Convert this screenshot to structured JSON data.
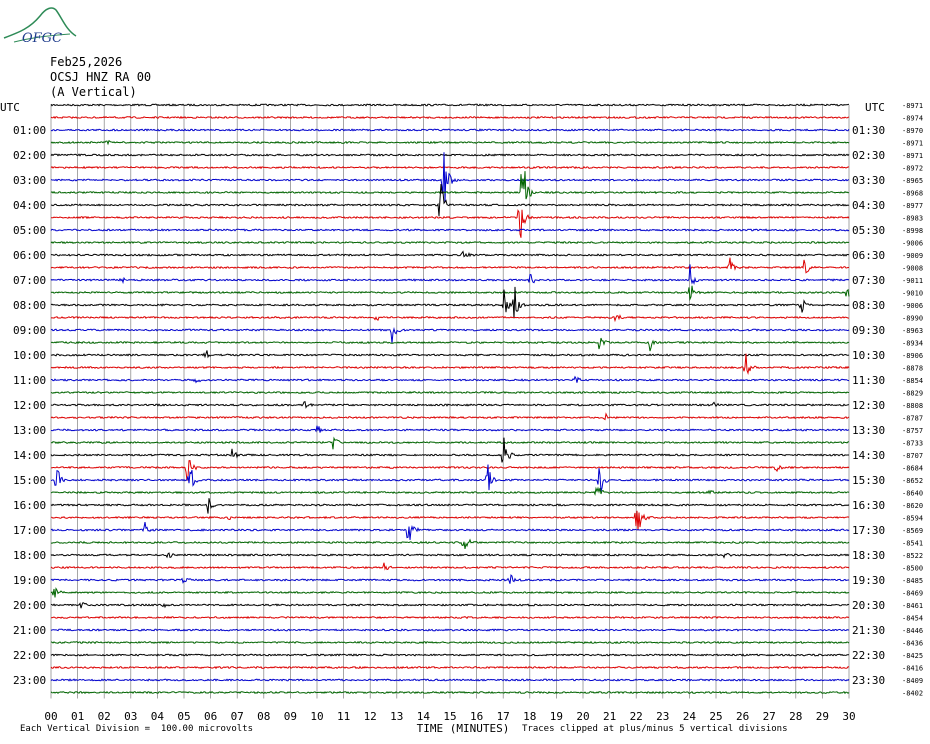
{
  "logo_text": "OFGC",
  "header": {
    "date": "Feb25,2026",
    "station": "OCSJ HNZ RA 00",
    "component": "(A Vertical)"
  },
  "footer": {
    "left_note": "Each Vertical Division =  100.00 microvolts",
    "xaxis_label": "TIME (MINUTES)",
    "right_note": "Traces clipped at plus/minus 5 vertical divisions"
  },
  "colors": {
    "cycle": [
      "#000000",
      "#dd0000",
      "#0000cc",
      "#006400"
    ],
    "grid": "#808080"
  },
  "chart_data": {
    "type": "line",
    "title": "",
    "xlabel": "TIME (MINUTES)",
    "xlim": [
      0,
      30
    ],
    "x_ticks": [
      "00",
      "01",
      "02",
      "03",
      "04",
      "05",
      "06",
      "07",
      "08",
      "09",
      "10",
      "11",
      "12",
      "13",
      "14",
      "15",
      "16",
      "17",
      "18",
      "19",
      "20",
      "21",
      "22",
      "23",
      "24",
      "25",
      "26",
      "27",
      "28",
      "29",
      "30"
    ],
    "left_axis_title": "UTC",
    "right_axis_title": "UTC",
    "left_hour_labels": [
      "01:00",
      "02:00",
      "03:00",
      "04:00",
      "05:00",
      "06:00",
      "07:00",
      "08:00",
      "09:00",
      "10:00",
      "11:00",
      "12:00",
      "13:00",
      "14:00",
      "15:00",
      "16:00",
      "17:00",
      "18:00",
      "19:00",
      "20:00",
      "21:00",
      "22:00",
      "23:00"
    ],
    "right_hour_labels": [
      "01:30",
      "02:30",
      "03:30",
      "04:30",
      "05:30",
      "06:30",
      "07:30",
      "08:30",
      "09:30",
      "10:30",
      "11:30",
      "12:30",
      "13:30",
      "14:30",
      "15:30",
      "16:30",
      "17:30",
      "18:30",
      "19:30",
      "20:30",
      "21:30",
      "22:30",
      "23:30"
    ],
    "trace_offsets": [
      "-8971",
      "-8974",
      "-8970",
      "-8971",
      "-8971",
      "-8972",
      "-8965",
      "-8968",
      "-8977",
      "-8983",
      "-8998",
      "-9006",
      "-9009",
      "-9008",
      "-9011",
      "-9010",
      "-9006",
      "-8990",
      "-8963",
      "-8934",
      "-8906",
      "-8878",
      "-8854",
      "-8829",
      "-8808",
      "-8787",
      "-8757",
      "-8733",
      "-8707",
      "-8684",
      "-8652",
      "-8640",
      "-8620",
      "-8594",
      "-8569",
      "-8541",
      "-8522",
      "-8500",
      "-8485",
      "-8469",
      "-8461",
      "-8454",
      "-8446",
      "-8436",
      "-8425",
      "-8416",
      "-8409",
      "-8402"
    ],
    "traces": 48,
    "events": [
      {
        "trace": 3,
        "minute": 2.1,
        "amp": 6
      },
      {
        "trace": 6,
        "minute": 14.7,
        "amp": 60
      },
      {
        "trace": 7,
        "minute": 17.7,
        "amp": 65
      },
      {
        "trace": 8,
        "minute": 14.6,
        "amp": 40
      },
      {
        "trace": 9,
        "minute": 17.6,
        "amp": 45
      },
      {
        "trace": 12,
        "minute": 15.5,
        "amp": 10
      },
      {
        "trace": 13,
        "minute": 25.5,
        "amp": 15
      },
      {
        "trace": 13,
        "minute": 28.3,
        "amp": 15
      },
      {
        "trace": 14,
        "minute": 2.6,
        "amp": 6
      },
      {
        "trace": 14,
        "minute": 18.0,
        "amp": 15
      },
      {
        "trace": 14,
        "minute": 24.0,
        "amp": 18
      },
      {
        "trace": 15,
        "minute": 24.0,
        "amp": 18
      },
      {
        "trace": 15,
        "minute": 29.9,
        "amp": 18
      },
      {
        "trace": 16,
        "minute": 17.0,
        "amp": 22
      },
      {
        "trace": 16,
        "minute": 17.4,
        "amp": 25
      },
      {
        "trace": 16,
        "minute": 28.2,
        "amp": 10
      },
      {
        "trace": 17,
        "minute": 12.2,
        "amp": 6
      },
      {
        "trace": 17,
        "minute": 21.2,
        "amp": 8
      },
      {
        "trace": 18,
        "minute": 12.8,
        "amp": 16
      },
      {
        "trace": 19,
        "minute": 20.6,
        "amp": 10
      },
      {
        "trace": 19,
        "minute": 22.5,
        "amp": 10
      },
      {
        "trace": 20,
        "minute": 5.8,
        "amp": 8
      },
      {
        "trace": 21,
        "minute": 26.1,
        "amp": 22
      },
      {
        "trace": 22,
        "minute": 5.4,
        "amp": 8
      },
      {
        "trace": 22,
        "minute": 19.6,
        "amp": 10
      },
      {
        "trace": 24,
        "minute": 9.5,
        "amp": 5
      },
      {
        "trace": 24,
        "minute": 24.8,
        "amp": 6
      },
      {
        "trace": 25,
        "minute": 20.8,
        "amp": 6
      },
      {
        "trace": 26,
        "minute": 10.0,
        "amp": 6
      },
      {
        "trace": 27,
        "minute": 10.6,
        "amp": 10
      },
      {
        "trace": 28,
        "minute": 17.0,
        "amp": 30
      },
      {
        "trace": 28,
        "minute": 6.8,
        "amp": 10
      },
      {
        "trace": 29,
        "minute": 5.1,
        "amp": 20
      },
      {
        "trace": 29,
        "minute": 27.2,
        "amp": 12
      },
      {
        "trace": 30,
        "minute": 0.2,
        "amp": 20
      },
      {
        "trace": 30,
        "minute": 5.2,
        "amp": 22
      },
      {
        "trace": 30,
        "minute": 16.4,
        "amp": 20
      },
      {
        "trace": 30,
        "minute": 20.6,
        "amp": 25
      },
      {
        "trace": 31,
        "minute": 20.5,
        "amp": 15
      },
      {
        "trace": 31,
        "minute": 24.7,
        "amp": 8
      },
      {
        "trace": 32,
        "minute": 5.9,
        "amp": 15
      },
      {
        "trace": 33,
        "minute": 6.6,
        "amp": 6
      },
      {
        "trace": 33,
        "minute": 22.0,
        "amp": 35
      },
      {
        "trace": 34,
        "minute": 3.5,
        "amp": 12
      },
      {
        "trace": 34,
        "minute": 13.4,
        "amp": 30
      },
      {
        "trace": 35,
        "minute": 15.5,
        "amp": 18
      },
      {
        "trace": 36,
        "minute": 4.4,
        "amp": 8
      },
      {
        "trace": 36,
        "minute": 25.3,
        "amp": 6
      },
      {
        "trace": 37,
        "minute": 12.5,
        "amp": 6
      },
      {
        "trace": 38,
        "minute": 4.9,
        "amp": 8
      },
      {
        "trace": 38,
        "minute": 17.2,
        "amp": 12
      },
      {
        "trace": 39,
        "minute": 0.1,
        "amp": 8
      },
      {
        "trace": 40,
        "minute": 1.1,
        "amp": 6
      },
      {
        "trace": 40,
        "minute": 4.2,
        "amp": 6
      }
    ]
  }
}
